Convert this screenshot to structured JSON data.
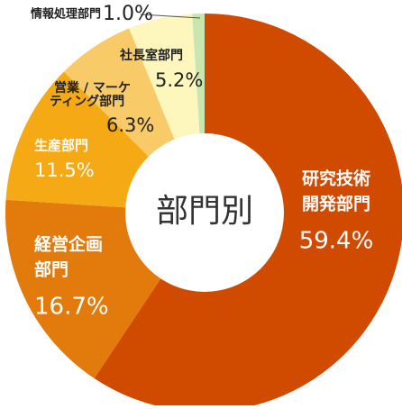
{
  "chart_data": {
    "type": "donut",
    "center_label": "部門別",
    "categories": [
      [
        "研究技術",
        "開発部門"
      ],
      [
        "経営企画",
        "部門"
      ],
      [
        "生産部門"
      ],
      [
        "営業 / マーケ",
        "ティング部門"
      ],
      [
        "社長室部門"
      ],
      [
        "情報処理部門"
      ]
    ],
    "values": [
      59.4,
      16.7,
      11.5,
      6.3,
      5.2,
      1.0
    ],
    "value_labels": [
      "59.4%",
      "16.7%",
      "11.5%",
      "6.3%",
      "5.2%",
      "1.0%"
    ],
    "colors": [
      "#d04a00",
      "#e37a0c",
      "#f4a915",
      "#f9cb68",
      "#fdf6bd",
      "#c8e6b0"
    ]
  }
}
